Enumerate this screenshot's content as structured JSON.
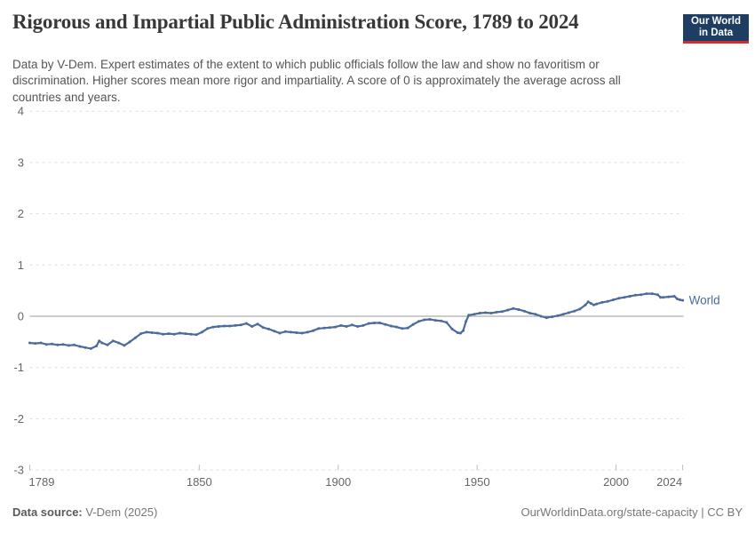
{
  "header": {
    "title": "Rigorous and Impartial Public Administration Score, 1789 to 2024",
    "subtitle": "Data by V-Dem. Expert estimates of the extent to which public officials follow the law and show no favoritism or discrimination. Higher scores mean more rigor and impartiality. A score of 0 is approximately the average across all countries and years.",
    "logo": {
      "line1": "Our World",
      "line2": "in Data"
    }
  },
  "chart_data": {
    "type": "line",
    "title": "Rigorous and Impartial Public Administration Score, 1789 to 2024",
    "xlabel": "",
    "ylabel": "",
    "xlim": [
      1789,
      2024
    ],
    "ylim": [
      -3,
      4
    ],
    "y_ticks": [
      4,
      3,
      2,
      1,
      0,
      -1,
      -2,
      -3
    ],
    "x_ticks": [
      1789,
      1850,
      1900,
      1950,
      2000,
      2024
    ],
    "grid": "horizontal dashed gridlines, solid line at y=0",
    "legend_position": "label at end of line",
    "series": [
      {
        "name": "World",
        "color": "#4c6a9c",
        "points": [
          [
            1789,
            -0.52
          ],
          [
            1791,
            -0.53
          ],
          [
            1793,
            -0.52
          ],
          [
            1795,
            -0.55
          ],
          [
            1797,
            -0.54
          ],
          [
            1799,
            -0.56
          ],
          [
            1801,
            -0.55
          ],
          [
            1803,
            -0.57
          ],
          [
            1805,
            -0.56
          ],
          [
            1807,
            -0.59
          ],
          [
            1809,
            -0.61
          ],
          [
            1811,
            -0.63
          ],
          [
            1813,
            -0.58
          ],
          [
            1814,
            -0.48
          ],
          [
            1815,
            -0.52
          ],
          [
            1817,
            -0.56
          ],
          [
            1819,
            -0.48
          ],
          [
            1821,
            -0.52
          ],
          [
            1823,
            -0.57
          ],
          [
            1825,
            -0.5
          ],
          [
            1827,
            -0.42
          ],
          [
            1829,
            -0.34
          ],
          [
            1831,
            -0.31
          ],
          [
            1833,
            -0.32
          ],
          [
            1835,
            -0.33
          ],
          [
            1837,
            -0.35
          ],
          [
            1839,
            -0.34
          ],
          [
            1841,
            -0.35
          ],
          [
            1843,
            -0.33
          ],
          [
            1845,
            -0.34
          ],
          [
            1847,
            -0.35
          ],
          [
            1849,
            -0.36
          ],
          [
            1851,
            -0.31
          ],
          [
            1853,
            -0.24
          ],
          [
            1855,
            -0.21
          ],
          [
            1857,
            -0.2
          ],
          [
            1859,
            -0.19
          ],
          [
            1861,
            -0.19
          ],
          [
            1863,
            -0.18
          ],
          [
            1865,
            -0.17
          ],
          [
            1867,
            -0.14
          ],
          [
            1869,
            -0.2
          ],
          [
            1871,
            -0.15
          ],
          [
            1873,
            -0.22
          ],
          [
            1875,
            -0.25
          ],
          [
            1877,
            -0.29
          ],
          [
            1879,
            -0.33
          ],
          [
            1881,
            -0.3
          ],
          [
            1883,
            -0.31
          ],
          [
            1885,
            -0.32
          ],
          [
            1887,
            -0.33
          ],
          [
            1889,
            -0.31
          ],
          [
            1891,
            -0.28
          ],
          [
            1893,
            -0.24
          ],
          [
            1895,
            -0.23
          ],
          [
            1897,
            -0.22
          ],
          [
            1899,
            -0.21
          ],
          [
            1901,
            -0.18
          ],
          [
            1903,
            -0.2
          ],
          [
            1905,
            -0.17
          ],
          [
            1907,
            -0.2
          ],
          [
            1909,
            -0.18
          ],
          [
            1911,
            -0.14
          ],
          [
            1913,
            -0.13
          ],
          [
            1915,
            -0.13
          ],
          [
            1917,
            -0.16
          ],
          [
            1919,
            -0.19
          ],
          [
            1921,
            -0.21
          ],
          [
            1923,
            -0.24
          ],
          [
            1925,
            -0.23
          ],
          [
            1927,
            -0.16
          ],
          [
            1929,
            -0.1
          ],
          [
            1931,
            -0.07
          ],
          [
            1933,
            -0.06
          ],
          [
            1935,
            -0.08
          ],
          [
            1937,
            -0.09
          ],
          [
            1939,
            -0.12
          ],
          [
            1941,
            -0.25
          ],
          [
            1943,
            -0.32
          ],
          [
            1944,
            -0.33
          ],
          [
            1945,
            -0.28
          ],
          [
            1946,
            -0.1
          ],
          [
            1947,
            0.02
          ],
          [
            1949,
            0.04
          ],
          [
            1951,
            0.06
          ],
          [
            1953,
            0.07
          ],
          [
            1955,
            0.06
          ],
          [
            1957,
            0.08
          ],
          [
            1959,
            0.09
          ],
          [
            1961,
            0.12
          ],
          [
            1963,
            0.15
          ],
          [
            1965,
            0.13
          ],
          [
            1967,
            0.1
          ],
          [
            1969,
            0.06
          ],
          [
            1971,
            0.04
          ],
          [
            1973,
            0.0
          ],
          [
            1975,
            -0.03
          ],
          [
            1977,
            -0.01
          ],
          [
            1979,
            0.01
          ],
          [
            1981,
            0.04
          ],
          [
            1983,
            0.07
          ],
          [
            1985,
            0.1
          ],
          [
            1987,
            0.14
          ],
          [
            1989,
            0.22
          ],
          [
            1990,
            0.28
          ],
          [
            1991,
            0.25
          ],
          [
            1992,
            0.22
          ],
          [
            1993,
            0.24
          ],
          [
            1995,
            0.27
          ],
          [
            1997,
            0.29
          ],
          [
            1999,
            0.32
          ],
          [
            2001,
            0.35
          ],
          [
            2003,
            0.37
          ],
          [
            2005,
            0.39
          ],
          [
            2007,
            0.41
          ],
          [
            2009,
            0.42
          ],
          [
            2011,
            0.44
          ],
          [
            2013,
            0.44
          ],
          [
            2015,
            0.42
          ],
          [
            2016,
            0.37
          ],
          [
            2017,
            0.37
          ],
          [
            2019,
            0.38
          ],
          [
            2021,
            0.39
          ],
          [
            2022,
            0.34
          ],
          [
            2023,
            0.32
          ],
          [
            2024,
            0.31
          ]
        ]
      }
    ]
  },
  "footer": {
    "source_label": "Data source:",
    "source_value": " V-Dem (2025)",
    "url": "OurWorldinData.org/state-capacity",
    "separator": " | ",
    "license": "CC BY"
  },
  "colors": {
    "line": "#4c6a9c",
    "grid": "#dcdcdc",
    "zero_line": "#9a9a9a",
    "tick": "#bbbbbb",
    "axis_text": "#666666",
    "logo_bg": "#1d3d63",
    "logo_stripe": "#d42b2f"
  }
}
